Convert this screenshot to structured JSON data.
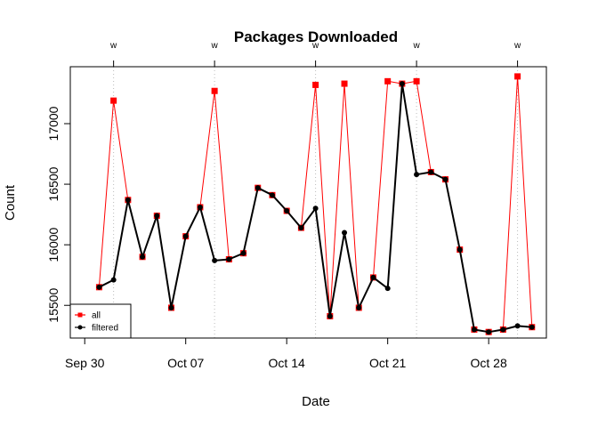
{
  "chart_data": {
    "type": "line",
    "title": "Packages Downloaded",
    "xlabel": "Date",
    "ylabel": "Count",
    "x": [
      "2017-10-01",
      "2017-10-02",
      "2017-10-03",
      "2017-10-04",
      "2017-10-05",
      "2017-10-06",
      "2017-10-07",
      "2017-10-08",
      "2017-10-09",
      "2017-10-10",
      "2017-10-11",
      "2017-10-12",
      "2017-10-13",
      "2017-10-14",
      "2017-10-15",
      "2017-10-16",
      "2017-10-17",
      "2017-10-18",
      "2017-10-19",
      "2017-10-20",
      "2017-10-21",
      "2017-10-22",
      "2017-10-23",
      "2017-10-24",
      "2017-10-25",
      "2017-10-26",
      "2017-10-27",
      "2017-10-28",
      "2017-10-29",
      "2017-10-30",
      "2017-10-31"
    ],
    "xlim": [
      "2017-09-29",
      "2017-11-01"
    ],
    "ylim": [
      15230,
      17470
    ],
    "x_ticks": [
      {
        "date": "2017-09-30",
        "label": "Sep 30"
      },
      {
        "date": "2017-10-07",
        "label": "Oct 07"
      },
      {
        "date": "2017-10-14",
        "label": "Oct 14"
      },
      {
        "date": "2017-10-21",
        "label": "Oct 21"
      },
      {
        "date": "2017-10-28",
        "label": "Oct 28"
      }
    ],
    "y_ticks": [
      15500,
      16000,
      16500,
      17000
    ],
    "week_markers": {
      "label": "w",
      "dates": [
        "2017-10-02",
        "2017-10-09",
        "2017-10-16",
        "2017-10-23",
        "2017-10-30"
      ]
    },
    "legend": "bottom-left",
    "series": [
      {
        "name": "all",
        "color": "#ff0000",
        "marker": "square",
        "values": [
          15650,
          17190,
          16370,
          15900,
          16240,
          15480,
          16070,
          16310,
          17270,
          15880,
          15930,
          16470,
          16410,
          16280,
          16140,
          17320,
          15410,
          17330,
          15480,
          15730,
          17350,
          17330,
          17350,
          16600,
          16540,
          15960,
          15300,
          15280,
          15300,
          17390,
          15320
        ]
      },
      {
        "name": "filtered",
        "color": "#000000",
        "marker": "circle",
        "values": [
          15650,
          15710,
          16370,
          15900,
          16240,
          15480,
          16070,
          16310,
          15870,
          15880,
          15930,
          16470,
          16410,
          16280,
          16140,
          16300,
          15410,
          16100,
          15480,
          15730,
          15640,
          17330,
          16580,
          16600,
          16540,
          15960,
          15300,
          15280,
          15300,
          15330,
          15320
        ]
      }
    ]
  }
}
